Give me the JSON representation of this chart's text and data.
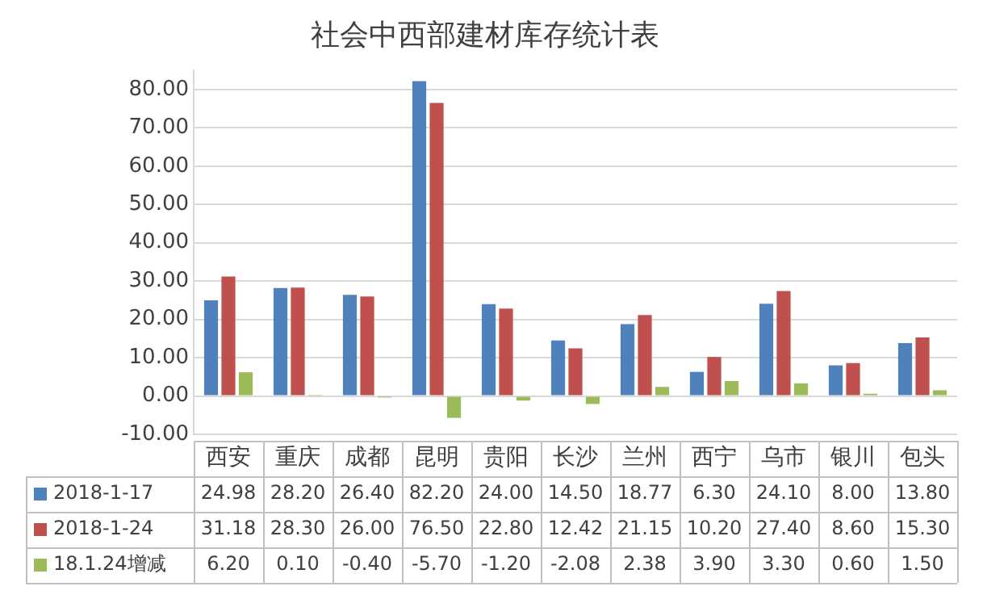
{
  "chart_data": {
    "type": "bar",
    "title": "社会中西部建材库存统计表",
    "categories": [
      "西安",
      "重庆",
      "成都",
      "昆明",
      "贵阳",
      "长沙",
      "兰州",
      "西宁",
      "乌市",
      "银川",
      "包头"
    ],
    "series": [
      {
        "name": "2018-1-17",
        "color": "#4f81bd",
        "values": [
          24.98,
          28.2,
          26.4,
          82.2,
          24.0,
          14.5,
          18.77,
          6.3,
          24.1,
          8.0,
          13.8
        ],
        "value_labels": [
          "24.98",
          "28.20",
          "26.40",
          "82.20",
          "24.00",
          "14.50",
          "18.77",
          "6.30",
          "24.10",
          "8.00",
          "13.80"
        ]
      },
      {
        "name": "2018-1-24",
        "color": "#c0504d",
        "values": [
          31.18,
          28.3,
          26.0,
          76.5,
          22.8,
          12.42,
          21.15,
          10.2,
          27.4,
          8.6,
          15.3
        ],
        "value_labels": [
          "31.18",
          "28.30",
          "26.00",
          "76.50",
          "22.80",
          "12.42",
          "21.15",
          "10.20",
          "27.40",
          "8.60",
          "15.30"
        ]
      },
      {
        "name": "18.1.24增减",
        "color": "#9bbb59",
        "values": [
          6.2,
          0.1,
          -0.4,
          -5.7,
          -1.2,
          -2.08,
          2.38,
          3.9,
          3.3,
          0.6,
          1.5
        ],
        "value_labels": [
          "6.20",
          "0.10",
          "-0.40",
          "-5.70",
          "-1.20",
          "-2.08",
          "2.38",
          "3.90",
          "3.30",
          "0.60",
          "1.50"
        ]
      }
    ],
    "ylim": [
      -10,
      85
    ],
    "yticks": [
      {
        "value": -10,
        "label": "-10.00"
      },
      {
        "value": 0,
        "label": "0.00"
      },
      {
        "value": 10,
        "label": "10.00"
      },
      {
        "value": 20,
        "label": "20.00"
      },
      {
        "value": 30,
        "label": "30.00"
      },
      {
        "value": 40,
        "label": "40.00"
      },
      {
        "value": 50,
        "label": "50.00"
      },
      {
        "value": 60,
        "label": "60.00"
      },
      {
        "value": 70,
        "label": "70.00"
      },
      {
        "value": 80,
        "label": "80.00"
      }
    ],
    "grid": "y",
    "legend": "bottom"
  }
}
